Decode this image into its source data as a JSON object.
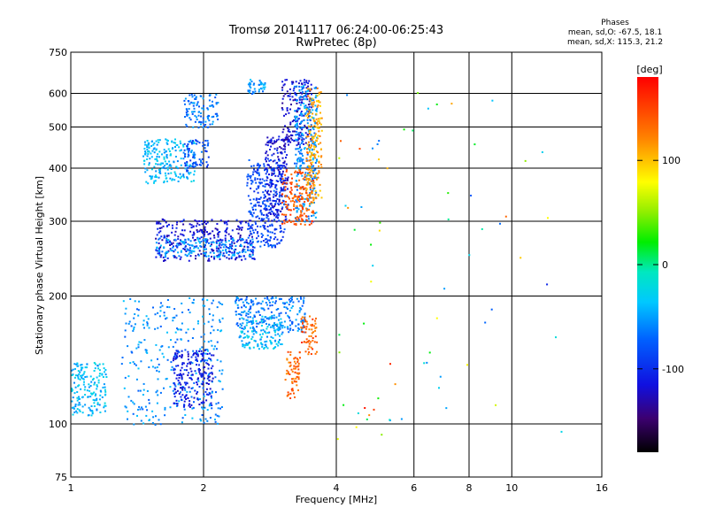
{
  "title_line1": "Tromsø 20141117 06:24:00-06:25:43",
  "title_line2": "RwPretec (8p)",
  "phases": {
    "heading": "Phases",
    "line_o": "mean, sd,O: -67.5, 18.1",
    "line_x": "mean, sd,X: 115.3, 21.2"
  },
  "colorbar": {
    "unit_label": "[deg]",
    "ticks": [
      "100",
      "0",
      "-100"
    ],
    "tick_values": [
      100,
      0,
      -100
    ],
    "range": [
      -180,
      180
    ]
  },
  "chart_data": {
    "type": "scatter",
    "xlabel": "Frequency [MHz]",
    "ylabel": "Stationary phase Virtual Height [km]",
    "xscale": "log",
    "yscale": "log",
    "xlim": [
      1,
      16
    ],
    "ylim": [
      75,
      750
    ],
    "x_ticks": [
      "1",
      "2",
      "4",
      "6",
      "8",
      "10",
      "16"
    ],
    "x_tick_values": [
      1,
      2,
      4,
      6,
      8,
      10,
      16
    ],
    "y_ticks": [
      "750",
      "600",
      "500",
      "400",
      "300",
      "200",
      "100",
      "75"
    ],
    "y_tick_values": [
      750,
      600,
      500,
      400,
      300,
      200,
      100,
      75
    ],
    "grid": true,
    "clusters": [
      {
        "x": [
          1.55,
          2.6
        ],
        "h": [
          243,
          305
        ],
        "phase": -115
      },
      {
        "x": [
          1.55,
          2.6
        ],
        "h": [
          248,
          275
        ],
        "phase": -55
      },
      {
        "x": [
          2.5,
          3.05
        ],
        "h": [
          260,
          420
        ],
        "phase": -85
      },
      {
        "x": [
          2.75,
          3.1
        ],
        "h": [
          300,
          480
        ],
        "phase": -115
      },
      {
        "x": [
          3.0,
          3.5
        ],
        "h": [
          450,
          650
        ],
        "phase": -120
      },
      {
        "x": [
          3.2,
          3.6
        ],
        "h": [
          300,
          630
        ],
        "phase": -55
      },
      {
        "x": [
          3.0,
          3.55
        ],
        "h": [
          295,
          400
        ],
        "phase": 140
      },
      {
        "x": [
          3.4,
          3.7
        ],
        "h": [
          330,
          620
        ],
        "phase": 110
      },
      {
        "x": [
          1.45,
          1.9
        ],
        "h": [
          370,
          470
        ],
        "phase": -40
      },
      {
        "x": [
          1.8,
          2.05
        ],
        "h": [
          395,
          470
        ],
        "phase": -80
      },
      {
        "x": [
          1.8,
          2.15
        ],
        "h": [
          500,
          600
        ],
        "phase": -65
      },
      {
        "x": [
          2.5,
          2.75
        ],
        "h": [
          600,
          650
        ],
        "phase": -55
      },
      {
        "x": [
          1.3,
          2.2
        ],
        "h": [
          100,
          200
        ],
        "phase": -55
      },
      {
        "x": [
          1.7,
          2.1
        ],
        "h": [
          110,
          150
        ],
        "phase": -110
      },
      {
        "x": [
          1.0,
          1.2
        ],
        "h": [
          105,
          140
        ],
        "phase": -40
      },
      {
        "x": [
          2.35,
          3.0
        ],
        "h": [
          165,
          200
        ],
        "phase": -65
      },
      {
        "x": [
          2.4,
          3.0
        ],
        "h": [
          150,
          180
        ],
        "phase": -40
      },
      {
        "x": [
          3.0,
          3.4
        ],
        "h": [
          165,
          200
        ],
        "phase": -60
      },
      {
        "x": [
          3.05,
          3.3
        ],
        "h": [
          115,
          150
        ],
        "phase": 135
      },
      {
        "x": [
          3.3,
          3.6
        ],
        "h": [
          145,
          180
        ],
        "phase": 140
      },
      {
        "x": [
          4.0,
          5.5
        ],
        "h": [
          90,
          600
        ],
        "phase": 60
      },
      {
        "x": [
          5.5,
          14.0
        ],
        "h": [
          95,
          620
        ],
        "phase": 20
      }
    ]
  }
}
